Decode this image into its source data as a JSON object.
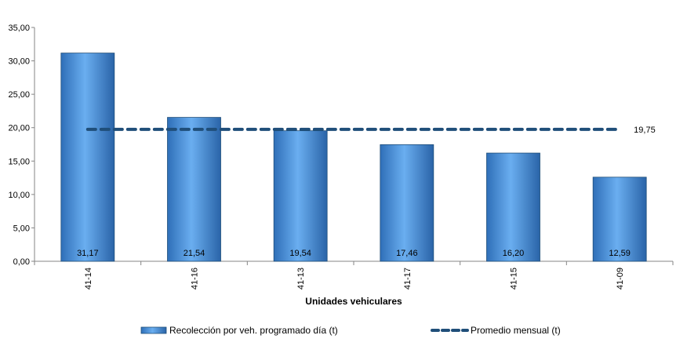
{
  "chart_data": {
    "type": "bar",
    "categories": [
      "41-14",
      "41-16",
      "41-13",
      "41-17",
      "41-15",
      "41-09"
    ],
    "series": [
      {
        "name": "Recolección por veh. programado día (t)",
        "type": "bar",
        "values": [
          31.17,
          21.54,
          19.54,
          17.46,
          16.2,
          12.59
        ],
        "labels": [
          "31,17",
          "21,54",
          "19,54",
          "17,46",
          "16,20",
          "12,59"
        ],
        "color": "#4a90d9"
      },
      {
        "name": "Promedio mensual (t)",
        "type": "line",
        "values": [
          19.75,
          19.75,
          19.75,
          19.75,
          19.75,
          19.75
        ],
        "label": "19,75",
        "color": "#1f4e79"
      }
    ],
    "xlabel": "Unidades vehiculares",
    "ylabel": "",
    "ylim": [
      0,
      35
    ],
    "yticks": [
      {
        "value": 0,
        "label": "0,00"
      },
      {
        "value": 5,
        "label": "5,00"
      },
      {
        "value": 10,
        "label": "10,00"
      },
      {
        "value": 15,
        "label": "15,00"
      },
      {
        "value": 20,
        "label": "20,00"
      },
      {
        "value": 25,
        "label": "25,00"
      },
      {
        "value": 30,
        "label": "30,00"
      },
      {
        "value": 35,
        "label": "35,00"
      }
    ],
    "grid": false,
    "legend_position": "bottom"
  }
}
